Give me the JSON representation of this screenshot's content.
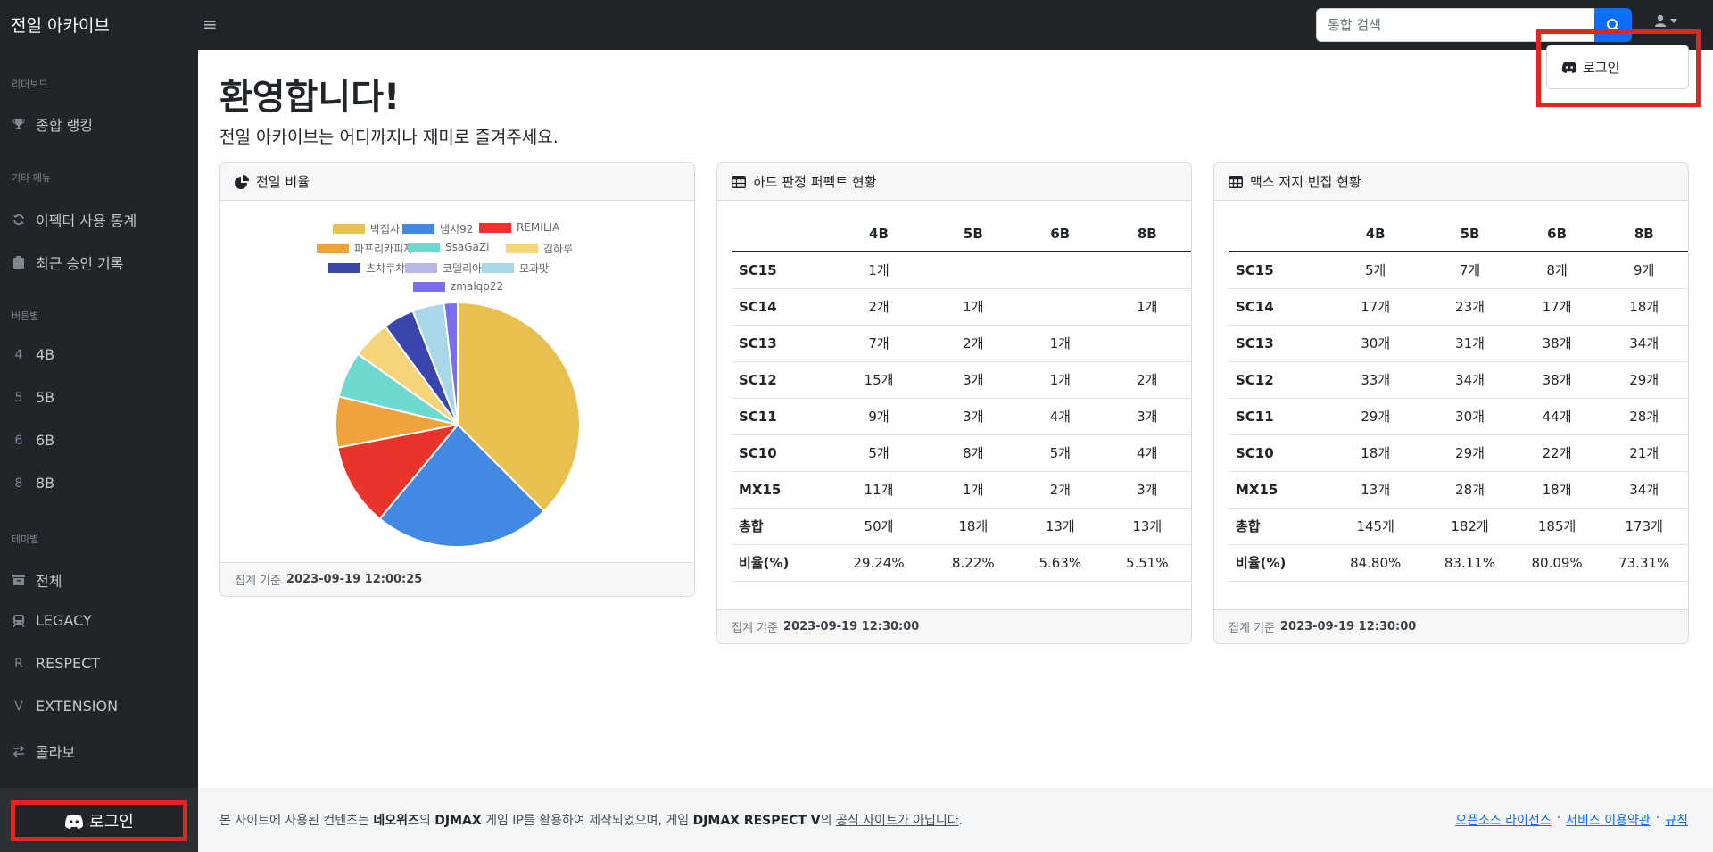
{
  "app": {
    "title": "전일 아카이브"
  },
  "search": {
    "placeholder": "통합 검색"
  },
  "dropdown": {
    "login_label": "로그인"
  },
  "sidebar": {
    "sections": [
      {
        "heading": "리더보드",
        "items": [
          {
            "label": "종합 랭킹",
            "icon": "trophy-icon"
          }
        ]
      },
      {
        "heading": "기타 메뉴",
        "items": [
          {
            "label": "이펙터 사용 통계",
            "icon": "refresh-icon"
          },
          {
            "label": "최근 승인 기록",
            "icon": "clipboard-icon"
          }
        ]
      },
      {
        "heading": "버튼별",
        "items": [
          {
            "label": "4B",
            "icon": "4"
          },
          {
            "label": "5B",
            "icon": "5"
          },
          {
            "label": "6B",
            "icon": "6"
          },
          {
            "label": "8B",
            "icon": "8"
          }
        ]
      },
      {
        "heading": "테마별",
        "items": [
          {
            "label": "전체",
            "icon": "box-icon"
          },
          {
            "label": "LEGACY",
            "icon": "train-icon"
          },
          {
            "label": "RESPECT",
            "icon": "R"
          },
          {
            "label": "EXTENSION",
            "icon": "V"
          },
          {
            "label": "콜라보",
            "icon": "swap-icon"
          }
        ]
      }
    ],
    "login_label": "로그인"
  },
  "main": {
    "title": "환영합니다!",
    "lead": "전일 아카이브는 어디까지나 재미로 즐겨주세요."
  },
  "pie_card": {
    "title": "전일 비율",
    "footer_prefix": "집계 기준",
    "footer_time": "2023-09-19 12:00:25"
  },
  "chart_data": {
    "type": "pie",
    "categories": [
      "박집사",
      "냄시92",
      "REMILIA",
      "파프리카피자",
      "SsaGaZi",
      "김하루",
      "츠챠쿠챠",
      "코델리아",
      "모과맛",
      "zmalqp22"
    ],
    "values": [
      37.5,
      23.5,
      11.0,
      6.7,
      6.1,
      5.1,
      4.1,
      0.0,
      4.2,
      1.8
    ],
    "colors": [
      "#e8c04f",
      "#4289e3",
      "#e8342a",
      "#efa33c",
      "#6ed9cf",
      "#f6d57a",
      "#3a46ad",
      "#b8b8e8",
      "#a8d8e8",
      "#7a6df0"
    ],
    "legend_position": "top"
  },
  "hard_card": {
    "title": "하드 판정 퍼펙트 현황",
    "footer_prefix": "집계 기준",
    "footer_time": "2023-09-19 12:30:00",
    "columns": [
      "",
      "4B",
      "5B",
      "6B",
      "8B"
    ],
    "rows": [
      [
        "SC15",
        "1개",
        "",
        "",
        ""
      ],
      [
        "SC14",
        "2개",
        "1개",
        "",
        "1개"
      ],
      [
        "SC13",
        "7개",
        "2개",
        "1개",
        ""
      ],
      [
        "SC12",
        "15개",
        "3개",
        "1개",
        "2개"
      ],
      [
        "SC11",
        "9개",
        "3개",
        "4개",
        "3개"
      ],
      [
        "SC10",
        "5개",
        "8개",
        "5개",
        "4개"
      ],
      [
        "MX15",
        "11개",
        "1개",
        "2개",
        "3개"
      ],
      [
        "총합",
        "50개",
        "18개",
        "13개",
        "13개"
      ],
      [
        "비율(%)",
        "29.24%",
        "8.22%",
        "5.63%",
        "5.51%"
      ]
    ]
  },
  "max_card": {
    "title": "맥스 저지 빈집 현황",
    "footer_prefix": "집계 기준",
    "footer_time": "2023-09-19 12:30:00",
    "columns": [
      "",
      "4B",
      "5B",
      "6B",
      "8B"
    ],
    "rows": [
      [
        "SC15",
        "5개",
        "7개",
        "8개",
        "9개"
      ],
      [
        "SC14",
        "17개",
        "23개",
        "17개",
        "18개"
      ],
      [
        "SC13",
        "30개",
        "31개",
        "38개",
        "34개"
      ],
      [
        "SC12",
        "33개",
        "34개",
        "38개",
        "29개"
      ],
      [
        "SC11",
        "29개",
        "30개",
        "44개",
        "28개"
      ],
      [
        "SC10",
        "18개",
        "29개",
        "22개",
        "21개"
      ],
      [
        "MX15",
        "13개",
        "28개",
        "18개",
        "34개"
      ],
      [
        "총합",
        "145개",
        "182개",
        "185개",
        "173개"
      ],
      [
        "비율(%)",
        "84.80%",
        "83.11%",
        "80.09%",
        "73.31%"
      ]
    ]
  },
  "footer": {
    "text_1": "본 사이트에 사용된 컨텐츠는 ",
    "bold_1": "네오위즈",
    "text_2": "의 ",
    "bold_2": "DJMAX",
    "text_3": " 게임 IP를 활용하여 제작되었으며, 게임 ",
    "bold_3": "DJMAX RESPECT V",
    "text_4": "의 ",
    "underline": "공식 사이트가 아닙니다",
    "text_5": ".",
    "links": [
      "오픈소스 라이선스",
      "서비스 이용약관",
      "규칙"
    ],
    "separator": "·"
  }
}
